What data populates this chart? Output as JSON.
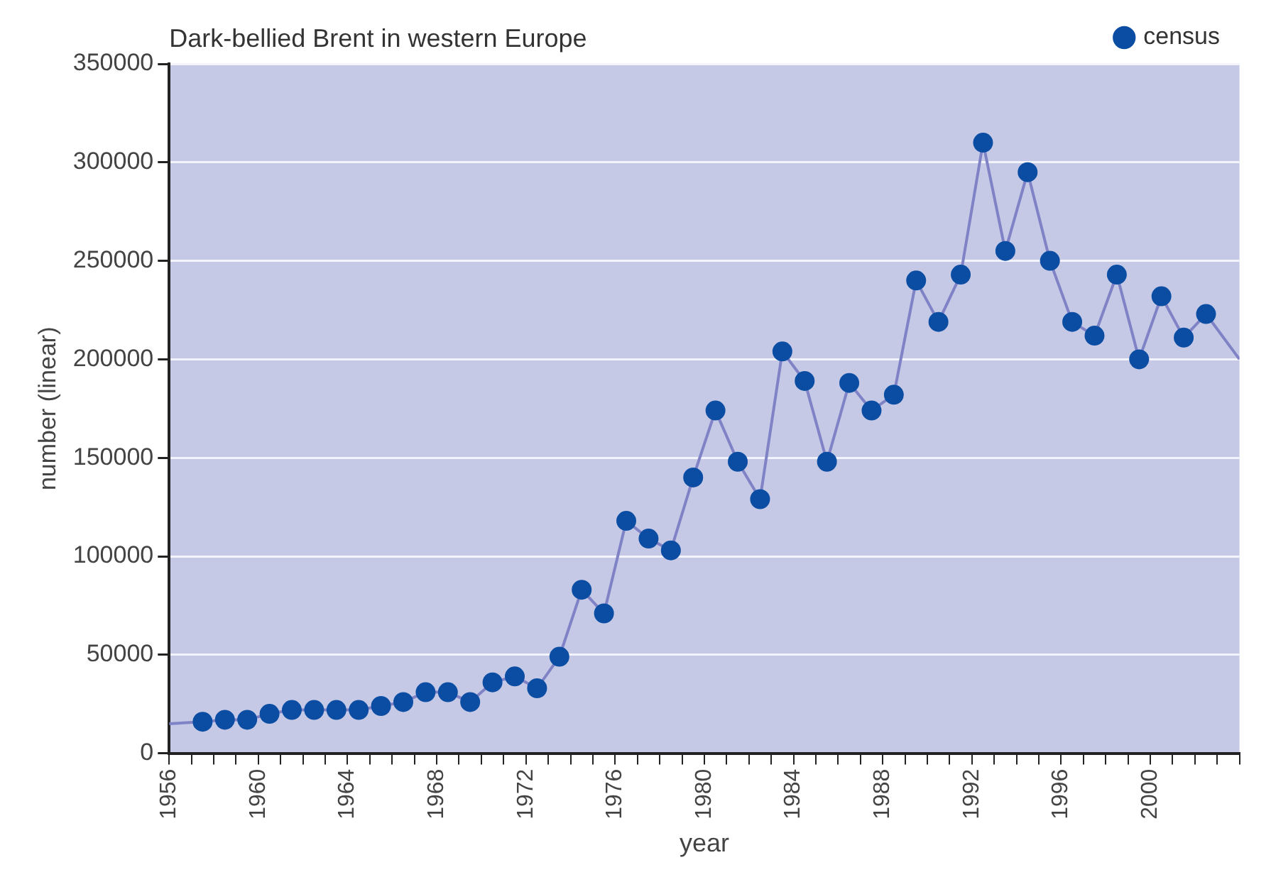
{
  "chart_data": {
    "type": "line",
    "title": "Dark-bellied Brent in western Europe",
    "xlabel": "year",
    "ylabel": "number (linear)",
    "x": [
      1956,
      1957.5,
      1958.5,
      1959.5,
      1960.5,
      1961.5,
      1962.5,
      1963.5,
      1964.5,
      1965.5,
      1966.5,
      1967.5,
      1968.5,
      1969.5,
      1970.5,
      1971.5,
      1972.5,
      1973.5,
      1974.5,
      1975.5,
      1976.5,
      1977.5,
      1978.5,
      1979.5,
      1980.5,
      1981.5,
      1982.5,
      1983.5,
      1984.5,
      1985.5,
      1986.5,
      1987.5,
      1988.5,
      1989.5,
      1990.5,
      1991.5,
      1992.5,
      1993.5,
      1994.5,
      1995.5,
      1996.5,
      1997.5,
      1998.5,
      1999.5,
      2000.5,
      2001.5,
      2002.5,
      2004
    ],
    "series": [
      {
        "name": "census",
        "color": "#0b4da2",
        "values": [
          15000,
          16000,
          17000,
          17000,
          20000,
          22000,
          22000,
          22000,
          22000,
          24000,
          26000,
          31000,
          31000,
          26000,
          36000,
          39000,
          33000,
          49000,
          83000,
          71000,
          118000,
          109000,
          103000,
          140000,
          174000,
          148000,
          129000,
          204000,
          189000,
          148000,
          188000,
          174000,
          182000,
          240000,
          219000,
          243000,
          310000,
          255000,
          295000,
          250000,
          219000,
          212000,
          243000,
          200000,
          232000,
          211000,
          223000,
          200000
        ]
      }
    ],
    "xlim": [
      1956,
      2004
    ],
    "ylim": [
      0,
      350000
    ],
    "xticks": [
      1956,
      {
        "value": 1957,
        "label": null
      },
      {
        "value": 1958,
        "label": null
      },
      {
        "value": 1959,
        "label": null
      },
      1960,
      {
        "value": 1961,
        "label": null
      },
      {
        "value": 1962,
        "label": null
      },
      {
        "value": 1963,
        "label": null
      },
      1964,
      {
        "value": 1965,
        "label": null
      },
      {
        "value": 1966,
        "label": null
      },
      {
        "value": 1967,
        "label": null
      },
      1968,
      {
        "value": 1969,
        "label": null
      },
      {
        "value": 1970,
        "label": null
      },
      {
        "value": 1971,
        "label": null
      },
      1972,
      {
        "value": 1973,
        "label": null
      },
      {
        "value": 1974,
        "label": null
      },
      {
        "value": 1975,
        "label": null
      },
      1976,
      {
        "value": 1977,
        "label": null
      },
      {
        "value": 1978,
        "label": null
      },
      {
        "value": 1979,
        "label": null
      },
      1980,
      {
        "value": 1981,
        "label": null
      },
      {
        "value": 1982,
        "label": null
      },
      {
        "value": 1983,
        "label": null
      },
      1984,
      {
        "value": 1985,
        "label": null
      },
      {
        "value": 1986,
        "label": null
      },
      {
        "value": 1987,
        "label": null
      },
      1988,
      {
        "value": 1989,
        "label": null
      },
      {
        "value": 1990,
        "label": null
      },
      {
        "value": 1991,
        "label": null
      },
      1992,
      {
        "value": 1993,
        "label": null
      },
      {
        "value": 1994,
        "label": null
      },
      {
        "value": 1995,
        "label": null
      },
      1996,
      {
        "value": 1997,
        "label": null
      },
      {
        "value": 1998,
        "label": null
      },
      {
        "value": 1999,
        "label": null
      },
      2000,
      {
        "value": 2001,
        "label": null
      },
      {
        "value": 2002,
        "label": null
      },
      {
        "value": 2003,
        "label": null
      },
      {
        "value": 2004,
        "label": null
      }
    ],
    "yticks": [
      0,
      50000,
      100000,
      150000,
      200000,
      250000,
      300000,
      350000
    ],
    "grid": "y",
    "legend": "top right",
    "marker": "circle",
    "line_style": "solid"
  }
}
